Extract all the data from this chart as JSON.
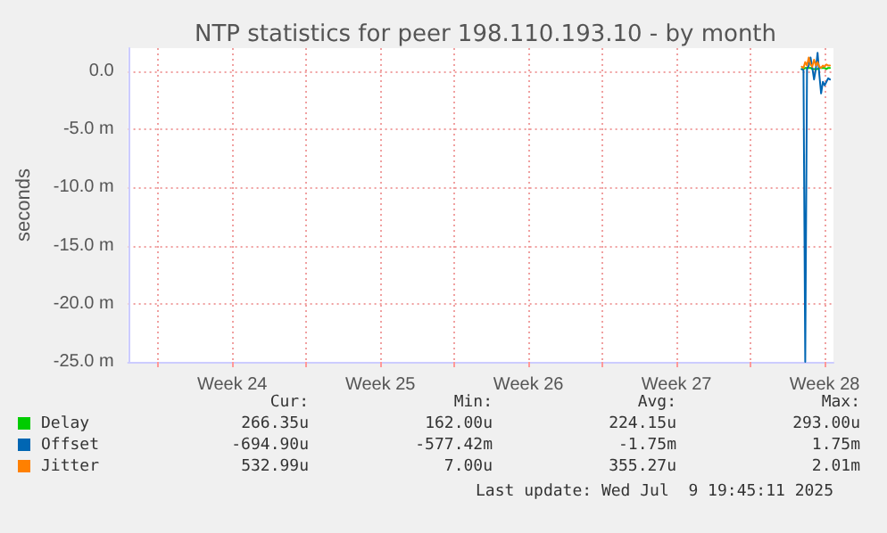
{
  "chart_data": {
    "type": "line",
    "title": "NTP statistics for peer 198.110.193.10 - by month",
    "ylabel": "seconds",
    "x": [
      "2025-07-09T10:00",
      "2025-07-09T12:00",
      "2025-07-09T14:00",
      "2025-07-09T16:00",
      "2025-07-09T18:00",
      "2025-07-09T20:00",
      "2025-07-09T22:00",
      "2025-07-10T00:00",
      "2025-07-10T02:00",
      "2025-07-10T04:00",
      "2025-07-10T06:00",
      "2025-07-10T08:00",
      "2025-07-10T10:00",
      "2025-07-10T12:00",
      "2025-07-10T14:00",
      "2025-07-10T16:00",
      "2025-07-10T18:00"
    ],
    "series": [
      {
        "name": "Delay",
        "color": "#00cc00",
        "values": [
          0.2,
          0.2,
          0.3,
          0.3,
          0.3,
          0.3,
          0.2,
          0.2,
          0.2,
          0.2,
          0.3,
          0.3,
          0.3,
          0.3,
          0.2,
          0.3,
          0.3
        ]
      },
      {
        "name": "Offset",
        "color": "#0066b3",
        "values": [
          0.2,
          0.1,
          -25,
          0.2,
          0.5,
          1.2,
          0.3,
          -0.7,
          0.2,
          1.6,
          -0.3,
          -1.9,
          -0.9,
          -1.2,
          -0.9,
          -0.6,
          -0.7
        ]
      },
      {
        "name": "Jitter",
        "color": "#ff8000",
        "values": [
          0.4,
          0.3,
          0.8,
          0.5,
          1.2,
          0.6,
          0.4,
          1.0,
          0.5,
          0.8,
          0.4,
          0.3,
          0.5,
          0.4,
          0.6,
          0.5,
          0.5
        ]
      }
    ],
    "xlim": [
      "2025-06-07T14:00",
      "2025-07-10T22:00"
    ],
    "xticks": [
      {
        "value": "2025-06-09T00:00",
        "label": null
      },
      {
        "value": "2025-06-12T12:00",
        "label": "Week 24"
      },
      {
        "value": "2025-06-16T00:00",
        "label": null
      },
      {
        "value": "2025-06-19T12:00",
        "label": "Week 25"
      },
      {
        "value": "2025-06-23T00:00",
        "label": null
      },
      {
        "value": "2025-06-26T12:00",
        "label": "Week 26"
      },
      {
        "value": "2025-06-30T00:00",
        "label": null
      },
      {
        "value": "2025-07-03T12:00",
        "label": "Week 27"
      },
      {
        "value": "2025-07-07T00:00",
        "label": null
      },
      {
        "value": "2025-07-10T12:00",
        "label": "Week 28"
      }
    ],
    "ylim": [
      -25,
      2
    ],
    "yticks": [
      {
        "value": -25,
        "label": "-25.0 m"
      },
      {
        "value": -20,
        "label": "-20.0 m"
      },
      {
        "value": -15,
        "label": "-15.0 m"
      },
      {
        "value": -10,
        "label": "-10.0 m"
      },
      {
        "value": -5,
        "label": "-5.0 m"
      },
      {
        "value": 0,
        "label": "0.0"
      }
    ],
    "grid": true,
    "legend": "bottom",
    "marker": "none",
    "line_style": "solid",
    "annotations": [
      "Cur:",
      "Min:",
      "Avg:",
      "Max:",
      "266.35u",
      "162.00u",
      "224.15u",
      "293.00u",
      "-694.90u",
      "-577.42m",
      "-1.75m",
      "1.75m",
      "532.99u",
      "7.00u",
      "355.27u",
      "2.01m",
      "Last update: Wed Jul  9 19:45:11 2025"
    ]
  }
}
